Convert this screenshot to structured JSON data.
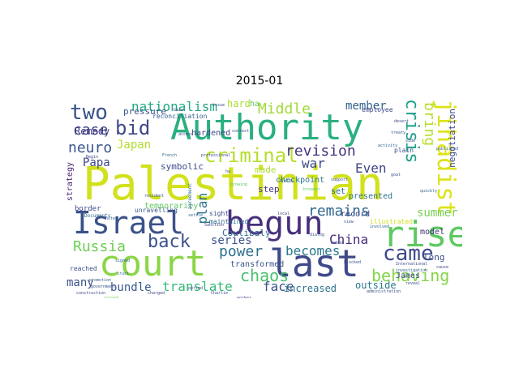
{
  "title": "2015-01",
  "words": [
    {
      "t": "Palestinian",
      "c": "#d1e11c"
    },
    {
      "t": "Authority",
      "c": "#2ab07f"
    },
    {
      "t": "court",
      "c": "#8bd646"
    },
    {
      "t": "last",
      "c": "#3e4a89"
    },
    {
      "t": "Israel",
      "c": "#3b528b"
    },
    {
      "t": "begun",
      "c": "#472f7d"
    },
    {
      "t": "rise",
      "c": "#5ec962"
    },
    {
      "t": "jihadist",
      "c": "#dde318"
    },
    {
      "t": "criminal",
      "c": "#b5de2b"
    },
    {
      "t": "came",
      "c": "#3e4989"
    },
    {
      "t": "two",
      "c": "#3b528b"
    },
    {
      "t": "bid",
      "c": "#3e4989"
    },
    {
      "t": "revision",
      "c": "#46337e"
    },
    {
      "t": "remains",
      "c": "#31688e"
    },
    {
      "t": "back",
      "c": "#3b528b"
    },
    {
      "t": "behaving",
      "c": "#86d549"
    },
    {
      "t": "case",
      "c": "#3e4989"
    },
    {
      "t": "neuro",
      "c": "#39568c"
    },
    {
      "t": "Middle",
      "c": "#a2da37"
    },
    {
      "t": "nationalism",
      "c": "#22a884"
    },
    {
      "t": "crisis",
      "c": "#1f9e89"
    },
    {
      "t": "bring",
      "c": "#b8de29"
    },
    {
      "t": "chaos",
      "c": "#4ac16d"
    },
    {
      "t": "power",
      "c": "#2d708e"
    },
    {
      "t": "Russia",
      "c": "#6ece58"
    },
    {
      "t": "series",
      "c": "#3b528b"
    },
    {
      "t": "becomes",
      "c": "#2a788e"
    },
    {
      "t": "China",
      "c": "#472d7b"
    },
    {
      "t": "face",
      "c": "#3b528b"
    },
    {
      "t": "translate",
      "c": "#35b779"
    },
    {
      "t": "plan",
      "c": "#2c728e"
    },
    {
      "t": "member",
      "c": "#35608d"
    },
    {
      "t": "Japan",
      "c": "#b2dd2d"
    },
    {
      "t": "war",
      "c": "#3e4a89"
    },
    {
      "t": "Even",
      "c": "#414487"
    },
    {
      "t": "summer",
      "c": "#7ad151"
    },
    {
      "t": "bundle",
      "c": "#38598c"
    },
    {
      "t": "many",
      "c": "#3b528b"
    },
    {
      "t": "Papa",
      "c": "#3f4889"
    },
    {
      "t": "Remedy",
      "c": "#443983"
    },
    {
      "t": "symbolic",
      "c": "#3e4a89"
    },
    {
      "t": "step",
      "c": "#453781"
    },
    {
      "t": "made",
      "c": "#addc30"
    },
    {
      "t": "increased",
      "c": "#2c728e"
    },
    {
      "t": "outside",
      "c": "#2a788e"
    },
    {
      "t": "Coulibaly",
      "c": "#31688e"
    },
    {
      "t": "transformed",
      "c": "#3b528b"
    },
    {
      "t": "pressure",
      "c": "#3b528b"
    },
    {
      "t": "hardened",
      "c": "#404688"
    },
    {
      "t": "long",
      "c": "#3b528b"
    },
    {
      "t": "record",
      "c": "#3e4989"
    },
    {
      "t": "negotiation",
      "c": "#3e4989"
    },
    {
      "t": "strategy",
      "c": "#481f70"
    },
    {
      "t": "presented",
      "c": "#2d708e"
    },
    {
      "t": "model",
      "c": "#46337e"
    },
    {
      "t": "temporarily",
      "c": "#5ec962"
    },
    {
      "t": "maintained",
      "c": "#31688e"
    },
    {
      "t": "illustrated",
      "c": "#d0e11c"
    },
    {
      "t": "checkpoint",
      "c": "#2a788e"
    },
    {
      "t": "set",
      "c": "#31688e"
    },
    {
      "t": "James",
      "c": "#3b528b"
    },
    {
      "t": "employee",
      "c": "#3e4989"
    },
    {
      "t": "reconciliation",
      "c": "#35608d"
    },
    {
      "t": "unravelling",
      "c": "#38598c"
    },
    {
      "t": "border",
      "c": "#3e4989"
    },
    {
      "t": "reached",
      "c": "#3b528b"
    },
    {
      "t": "hard",
      "c": "#addc30"
    },
    {
      "t": "sight",
      "c": "#3b528b"
    },
    {
      "t": "plain",
      "c": "#3b528b"
    },
    {
      "t": "ha",
      "c": "#5ec962"
    },
    {
      "t": "Documents",
      "c": "#31688e"
    },
    {
      "t": "professional",
      "c": "#3e4989"
    },
    {
      "t": "administration",
      "c": "#3b528b"
    },
    {
      "t": "International",
      "c": "#3e4989"
    },
    {
      "t": "investigation",
      "c": "#35608d"
    },
    {
      "t": "agreement",
      "c": "#31688e"
    },
    {
      "t": "government",
      "c": "#3b528b"
    },
    {
      "t": "construction",
      "c": "#3e4989"
    },
    {
      "t": "promotion",
      "c": "#35608d"
    },
    {
      "t": "resident",
      "c": "#3b528b"
    },
    {
      "t": "Sanction",
      "c": "#3e4989"
    },
    {
      "t": "French",
      "c": "#31688e"
    },
    {
      "t": "ha",
      "c": "#3b528b"
    },
    {
      "t": "Begin",
      "c": "#3e4989"
    },
    {
      "t": "published",
      "c": "#35608d"
    },
    {
      "t": "treaty",
      "c": "#3b528b"
    },
    {
      "t": "desert",
      "c": "#3e4989"
    },
    {
      "t": "side",
      "c": "#3b528b"
    },
    {
      "t": "activity",
      "c": "#31688e"
    },
    {
      "t": "charged",
      "c": "#3e4989"
    },
    {
      "t": "growing",
      "c": "#5ec962"
    },
    {
      "t": "Charlie",
      "c": "#3b528b"
    },
    {
      "t": "joined",
      "c": "#7ad151"
    },
    {
      "t": "worker",
      "c": "#3e4989"
    },
    {
      "t": "fields",
      "c": "#31688e"
    },
    {
      "t": "dialog",
      "c": "#3b528b"
    },
    {
      "t": "Hebdo",
      "c": "#3e4989"
    },
    {
      "t": "quickly",
      "c": "#35608d"
    },
    {
      "t": "blocked",
      "c": "#3b528b"
    },
    {
      "t": "Gaza",
      "c": "#3e4989"
    },
    {
      "t": "support",
      "c": "#3b528b"
    },
    {
      "t": "involved",
      "c": "#31688e"
    },
    {
      "t": "issue",
      "c": "#3e4989"
    },
    {
      "t": "period",
      "c": "#3b528b"
    },
    {
      "t": "signed",
      "c": "#35608d"
    },
    {
      "t": "access",
      "c": "#3e4989"
    },
    {
      "t": "context",
      "c": "#3b528b"
    },
    {
      "t": "settle",
      "c": "#31688e"
    },
    {
      "t": "broader",
      "c": "#5ec962"
    },
    {
      "t": "view",
      "c": "#3b528b"
    },
    {
      "t": "cause",
      "c": "#3e4989"
    },
    {
      "t": "note",
      "c": "#35608d"
    },
    {
      "t": "reveal",
      "c": "#3b528b"
    },
    {
      "t": "local",
      "c": "#3e4989"
    },
    {
      "t": "goal",
      "c": "#3b528b"
    },
    {
      "t": "trust",
      "c": "#31688e"
    }
  ]
}
